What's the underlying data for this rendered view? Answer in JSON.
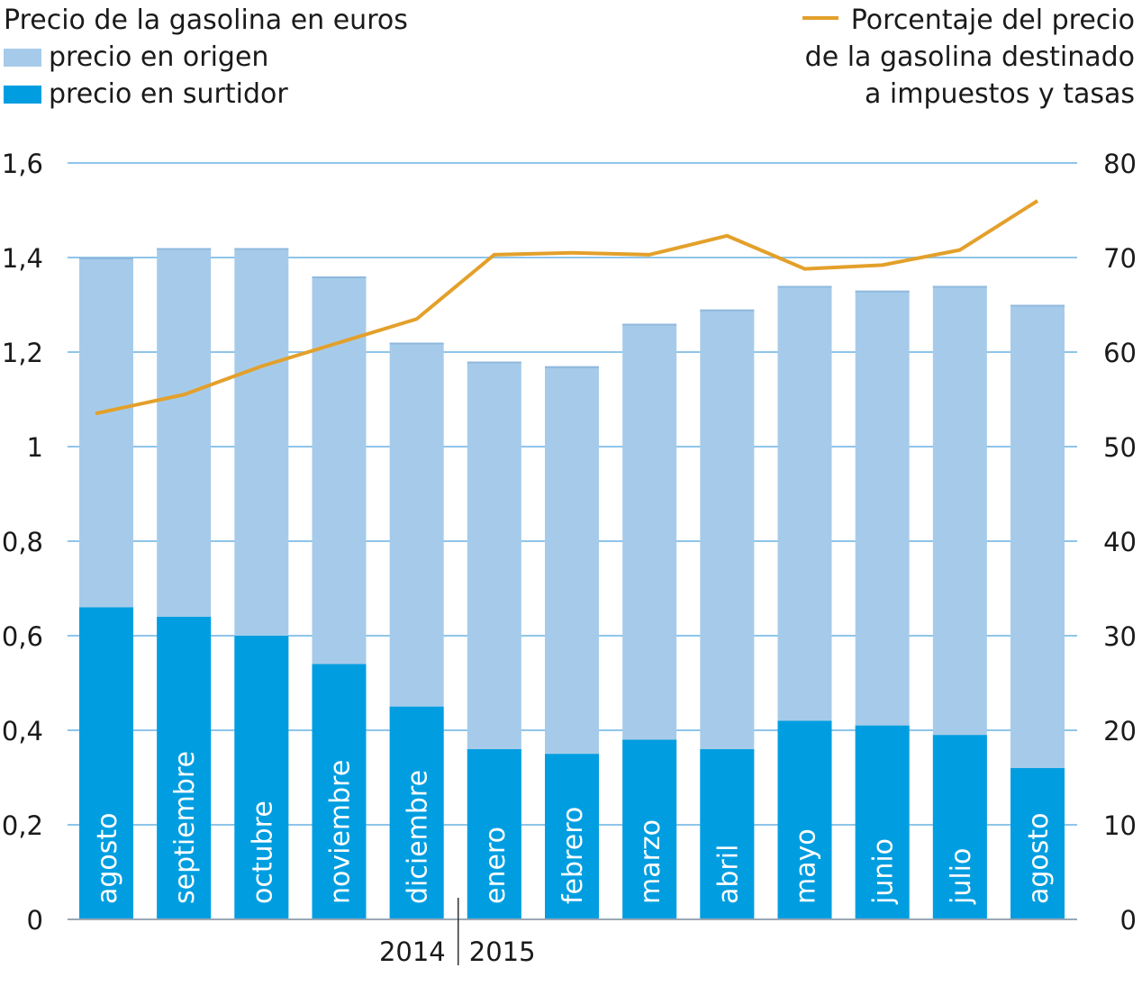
{
  "legend": {
    "left_title": "Precio de la gasolina en euros",
    "origin_label": "precio en origen",
    "pump_label": "precio en surtidor",
    "right_line1": "Porcentaje del precio",
    "right_line2": "de la gasolina destinado",
    "right_line3": "a impuestos y tasas"
  },
  "colors": {
    "origin": "#a6cbea",
    "pump": "#009ee0",
    "line": "#e3a02a",
    "grid": "#8ec5ea",
    "axis": "#9aa8b5"
  },
  "chart_data": {
    "type": "bar",
    "categories": [
      "agosto",
      "septiembre",
      "octubre",
      "noviembre",
      "diciembre",
      "enero",
      "febrero",
      "marzo",
      "abril",
      "mayo",
      "junio",
      "julio",
      "agosto"
    ],
    "series": [
      {
        "name": "precio en origen",
        "values": [
          1.4,
          1.42,
          1.42,
          1.36,
          1.22,
          1.18,
          1.17,
          1.26,
          1.29,
          1.34,
          1.33,
          1.34,
          1.3
        ]
      },
      {
        "name": "precio en surtidor",
        "values": [
          0.66,
          0.64,
          0.6,
          0.54,
          0.45,
          0.36,
          0.35,
          0.38,
          0.36,
          0.42,
          0.41,
          0.39,
          0.32
        ]
      },
      {
        "name": "Porcentaje del precio de la gasolina destinado a impuestos y tasas",
        "axis": "right",
        "type": "line",
        "values": [
          53.5,
          55.5,
          58.5,
          61.0,
          63.5,
          70.3,
          70.5,
          70.3,
          72.3,
          68.8,
          69.2,
          70.8,
          76.0
        ]
      }
    ],
    "ylim": [
      0,
      1.6
    ],
    "y_ticks": [
      "0",
      "0,2",
      "0,4",
      "0,6",
      "0,8",
      "1",
      "1,2",
      "1,4",
      "1,6"
    ],
    "y2lim": [
      0,
      80
    ],
    "y2_ticks": [
      "0",
      "10",
      "20",
      "30",
      "40",
      "50",
      "60",
      "70",
      "80"
    ],
    "year_labels": [
      "2014",
      "2015"
    ],
    "grid": true
  }
}
